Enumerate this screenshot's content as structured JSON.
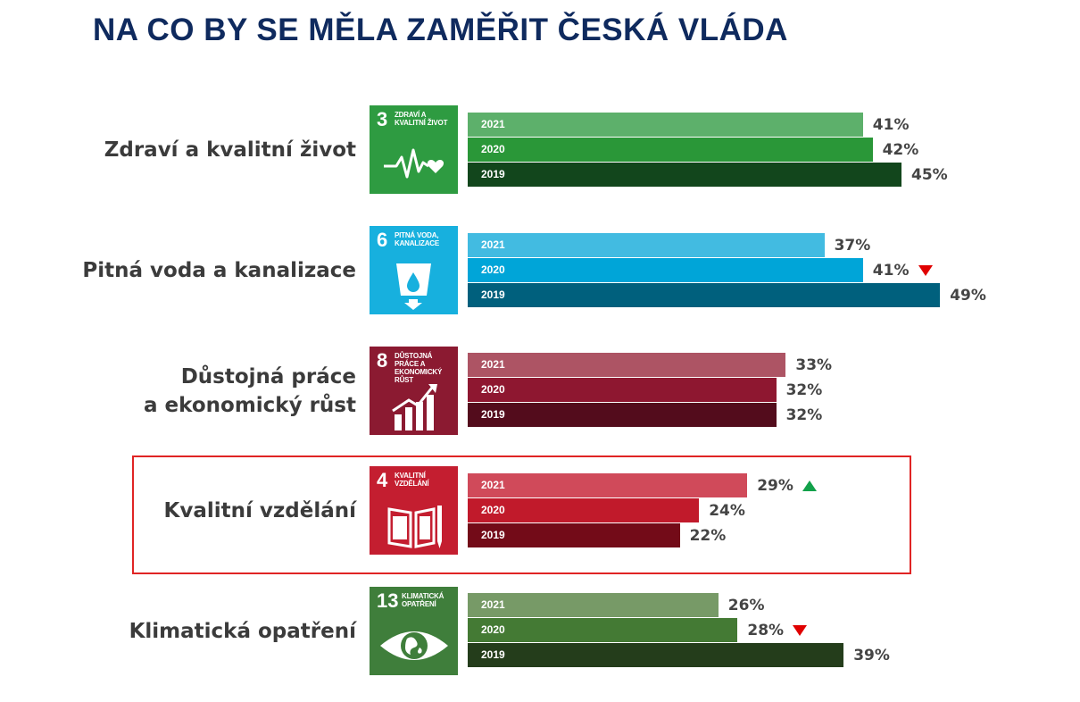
{
  "title": "NA CO BY SE MĚLA ZAMĚŘIT ČESKÁ VLÁDA",
  "chart_data": {
    "type": "bar",
    "orientation": "horizontal",
    "title": "NA CO BY SE MĚLA ZAMĚŘIT ČESKÁ VLÁDA",
    "xlim": [
      0,
      50
    ],
    "value_suffix": "%",
    "series_years": [
      "2021",
      "2020",
      "2019"
    ],
    "groups": [
      {
        "label": "Zdraví a kvalitní život",
        "sdg": {
          "number": "3",
          "text": "ZDRAVÍ A KVALITNÍ ŽIVOT",
          "color": "#2e9b41",
          "icon": "heartbeat-icon"
        },
        "bars": [
          {
            "year": "2021",
            "value": 41,
            "display": "41%",
            "color": "#5db06b",
            "trend": ""
          },
          {
            "year": "2020",
            "value": 42,
            "display": "42%",
            "color": "#2a9738",
            "trend": ""
          },
          {
            "year": "2019",
            "value": 45,
            "display": "45%",
            "color": "#12461c",
            "trend": ""
          }
        ]
      },
      {
        "label": "Pitná voda a kanalizace",
        "sdg": {
          "number": "6",
          "text": "PITNÁ VODA, KANALIZACE",
          "color": "#17b0de",
          "icon": "water-glass-icon"
        },
        "bars": [
          {
            "year": "2021",
            "value": 37,
            "display": "37%",
            "color": "#42bbe1",
            "trend": ""
          },
          {
            "year": "2020",
            "value": 41,
            "display": "41%",
            "color": "#00a5d8",
            "trend": "down"
          },
          {
            "year": "2019",
            "value": 49,
            "display": "49%",
            "color": "#00607d",
            "trend": ""
          }
        ]
      },
      {
        "label_lines": [
          "Důstojná práce",
          "a ekonomický růst"
        ],
        "sdg": {
          "number": "8",
          "text": "DŮSTOJNÁ PRÁCE A EKONOMICKÝ RŮST",
          "color": "#8b1a31",
          "icon": "growth-chart-icon"
        },
        "bars": [
          {
            "year": "2021",
            "value": 33,
            "display": "33%",
            "color": "#ad5464",
            "trend": ""
          },
          {
            "year": "2020",
            "value": 32,
            "display": "32%",
            "color": "#8e1730",
            "trend": ""
          },
          {
            "year": "2019",
            "value": 32,
            "display": "32%",
            "color": "#530c1c",
            "trend": ""
          }
        ]
      },
      {
        "label": "Kvalitní vzdělání",
        "sdg": {
          "number": "4",
          "text": "KVALITNÍ VZDĚLÁNÍ",
          "color": "#c41e30",
          "icon": "book-pencil-icon"
        },
        "bars": [
          {
            "year": "2021",
            "value": 29,
            "display": "29%",
            "color": "#d04a5a",
            "trend": "up"
          },
          {
            "year": "2020",
            "value": 24,
            "display": "24%",
            "color": "#c11a2b",
            "trend": ""
          },
          {
            "year": "2019",
            "value": 22,
            "display": "22%",
            "color": "#730b18",
            "trend": ""
          }
        ],
        "highlighted": true
      },
      {
        "label": "Klimatická opatření",
        "sdg": {
          "number": "13",
          "text": "KLIMATICKÁ OPATŘENÍ",
          "color": "#3f7e3b",
          "icon": "eye-globe-icon"
        },
        "bars": [
          {
            "year": "2021",
            "value": 26,
            "display": "26%",
            "color": "#779a67",
            "trend": ""
          },
          {
            "year": "2020",
            "value": 28,
            "display": "28%",
            "color": "#447a34",
            "trend": "down"
          },
          {
            "year": "2019",
            "value": 39,
            "display": "39%",
            "color": "#243d1b",
            "trend": ""
          }
        ]
      }
    ]
  },
  "colors": {
    "title": "#0f2a5e",
    "category_text": "#3b3b3b",
    "value_text": "#444444",
    "trend_down": "#e00000",
    "trend_up": "#12a14a",
    "highlight_border": "#e02424"
  }
}
